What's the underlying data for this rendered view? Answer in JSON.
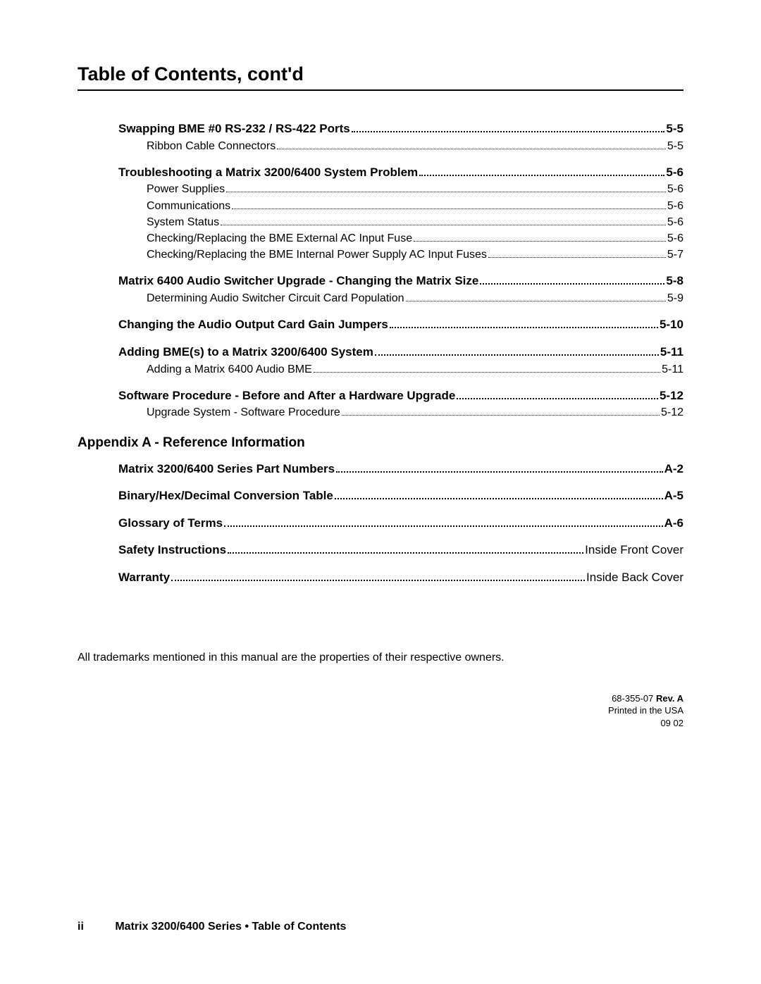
{
  "colors": {
    "text": "#000000",
    "background": "#ffffff",
    "rule": "#000000"
  },
  "typography": {
    "title_fontsize": 27,
    "section_fontsize": 17,
    "sub_fontsize": 16,
    "body_fontsize": 16,
    "meta_fontsize": 13,
    "font_family": "Arial, Helvetica, sans-serif"
  },
  "title": "Table of Contents, cont'd",
  "toc": {
    "sections": [
      {
        "type": "section",
        "label": "Swapping BME #0 RS-232 / RS-422 Ports",
        "page": "5-5",
        "subs": [
          {
            "label": "Ribbon Cable Connectors",
            "page": "5-5"
          }
        ]
      },
      {
        "type": "section",
        "label": "Troubleshooting a Matrix 3200/6400 System Problem",
        "page": "5-6",
        "subs": [
          {
            "label": "Power Supplies",
            "page": "5-6"
          },
          {
            "label": "Communications",
            "page": "5-6"
          },
          {
            "label": "System Status",
            "page": "5-6"
          },
          {
            "label": "Checking/Replacing the BME External AC Input Fuse",
            "page": "5-6"
          },
          {
            "label": "Checking/Replacing the BME Internal Power Supply AC Input Fuses",
            "page": "5-7"
          }
        ]
      },
      {
        "type": "section",
        "label": "Matrix 6400 Audio Switcher Upgrade - Changing the Matrix Size",
        "page": "5-8",
        "subs": [
          {
            "label": "Determining Audio Switcher Circuit    Card Population",
            "page": "5-9"
          }
        ]
      },
      {
        "type": "section",
        "label": "Changing the Audio Output Card Gain Jumpers",
        "page": "5-10",
        "subs": []
      },
      {
        "type": "section",
        "label": "Adding BME(s) to a Matrix 3200/6400 System",
        "page": "5-11",
        "subs": [
          {
            "label": "Adding a Matrix 6400 Audio BME",
            "page": "5-11"
          }
        ]
      },
      {
        "type": "section",
        "label": "Software Procedure - Before and After a Hardware Upgrade",
        "page": "5-12",
        "subs": [
          {
            "label": "Upgrade System - Software Procedure",
            "page": "5-12"
          }
        ]
      }
    ],
    "appendix_heading": "Appendix A - Reference Information",
    "appendix": [
      {
        "label": "Matrix 3200/6400 Series Part Numbers",
        "page": "A-2"
      },
      {
        "label": "Binary/Hex/Decimal Conversion Table",
        "page": "A-5"
      },
      {
        "label": "Glossary of Terms",
        "page": "A-6"
      },
      {
        "label": "Safety Instructions",
        "page": "Inside Front Cover"
      },
      {
        "label": "Warranty",
        "page": "Inside Back Cover"
      }
    ]
  },
  "trademark_note": "All trademarks mentioned in this manual are the properties of their respective owners.",
  "meta": {
    "doc_number": "68-355-07",
    "rev_label": "Rev. A",
    "printed": "Printed in the USA",
    "date": "09 02"
  },
  "footer": {
    "page_number": "ii",
    "text": "Matrix 3200/6400 Series • Table of Contents"
  }
}
